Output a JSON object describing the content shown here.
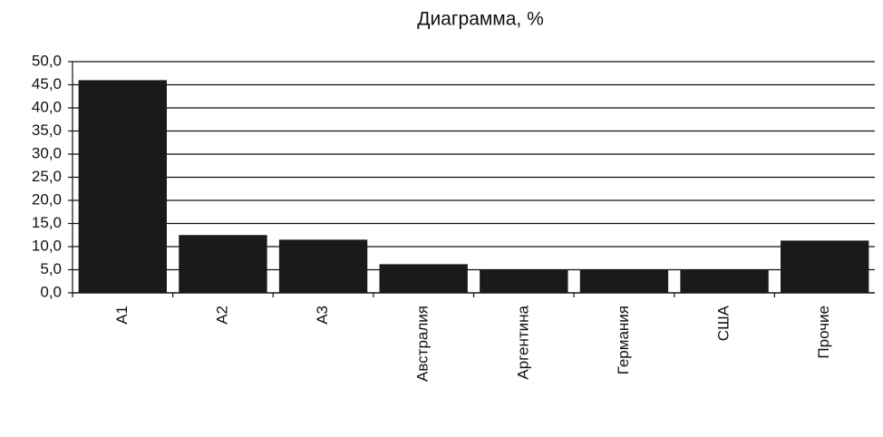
{
  "chart_data": {
    "type": "bar",
    "title": "Диаграмма, %",
    "categories": [
      "А1",
      "А2",
      "А3",
      "Австралия",
      "Аргентина",
      "Германия",
      "США",
      "Прочие"
    ],
    "values": [
      46,
      12.5,
      11.5,
      6.2,
      5,
      5,
      5,
      11.3
    ],
    "color": "#1a1a1a",
    "ylim": [
      0,
      50
    ],
    "yticks": [
      {
        "value": 0,
        "label": "0,0"
      },
      {
        "value": 5,
        "label": "5,0"
      },
      {
        "value": 10,
        "label": "10,0"
      },
      {
        "value": 15,
        "label": "15,0"
      },
      {
        "value": 20,
        "label": "20,0"
      },
      {
        "value": 25,
        "label": "25,0"
      },
      {
        "value": 30,
        "label": "30,0"
      },
      {
        "value": 35,
        "label": "35,0"
      },
      {
        "value": 40,
        "label": "40,0"
      },
      {
        "value": 45,
        "label": "45,0"
      },
      {
        "value": 50,
        "label": "50,0"
      }
    ],
    "grid": true
  }
}
